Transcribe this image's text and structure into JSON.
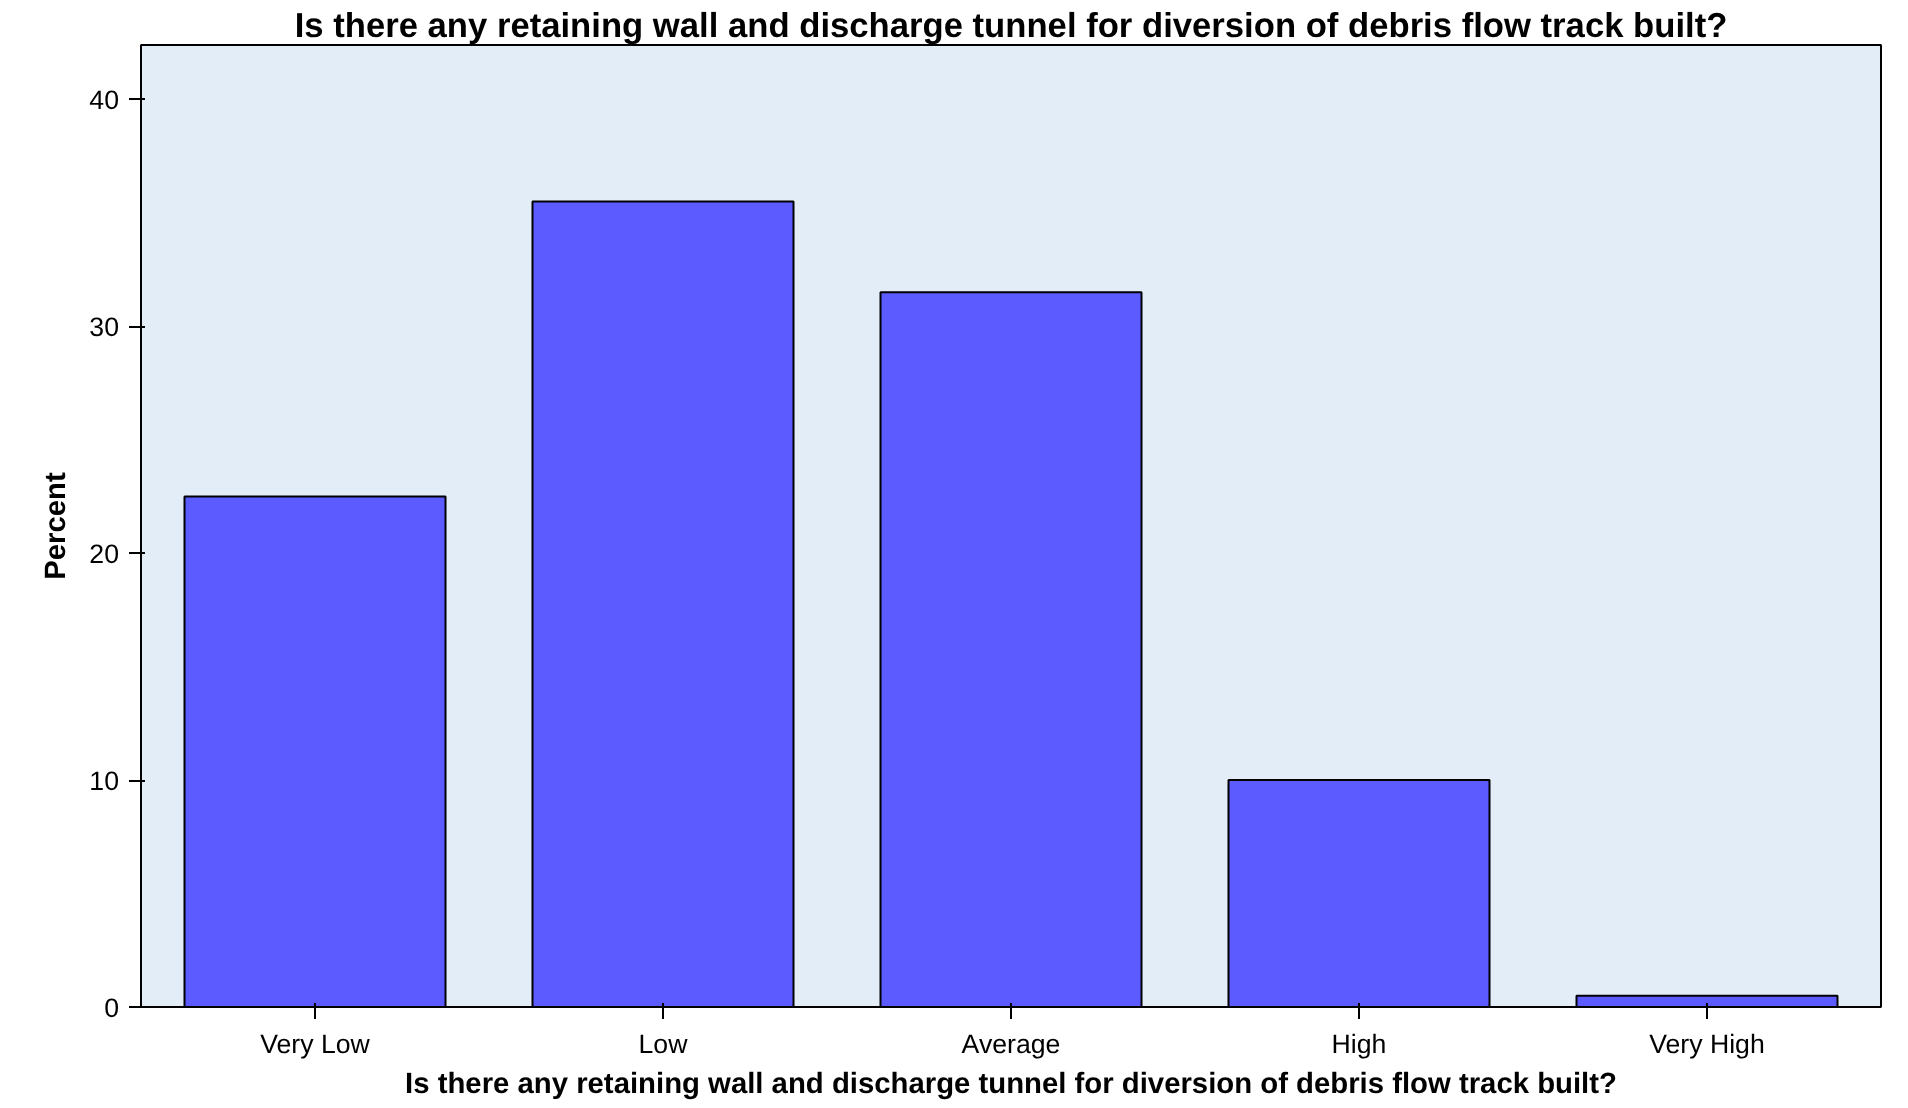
{
  "chart_data": {
    "type": "bar",
    "title": "Is there any retaining wall and discharge tunnel for diversion of debris flow track built?",
    "xlabel": "Is there any retaining wall and discharge tunnel for diversion of debris flow track built?",
    "ylabel": "Percent",
    "categories": [
      "Very Low",
      "Low",
      "Average",
      "High",
      "Very High"
    ],
    "values": [
      22.5,
      35.5,
      31.5,
      10,
      0.5
    ],
    "color": "#5b5bff",
    "ylim": [
      0,
      42.4
    ],
    "yticks": [
      0,
      10,
      20,
      30,
      40
    ],
    "grid": false
  }
}
